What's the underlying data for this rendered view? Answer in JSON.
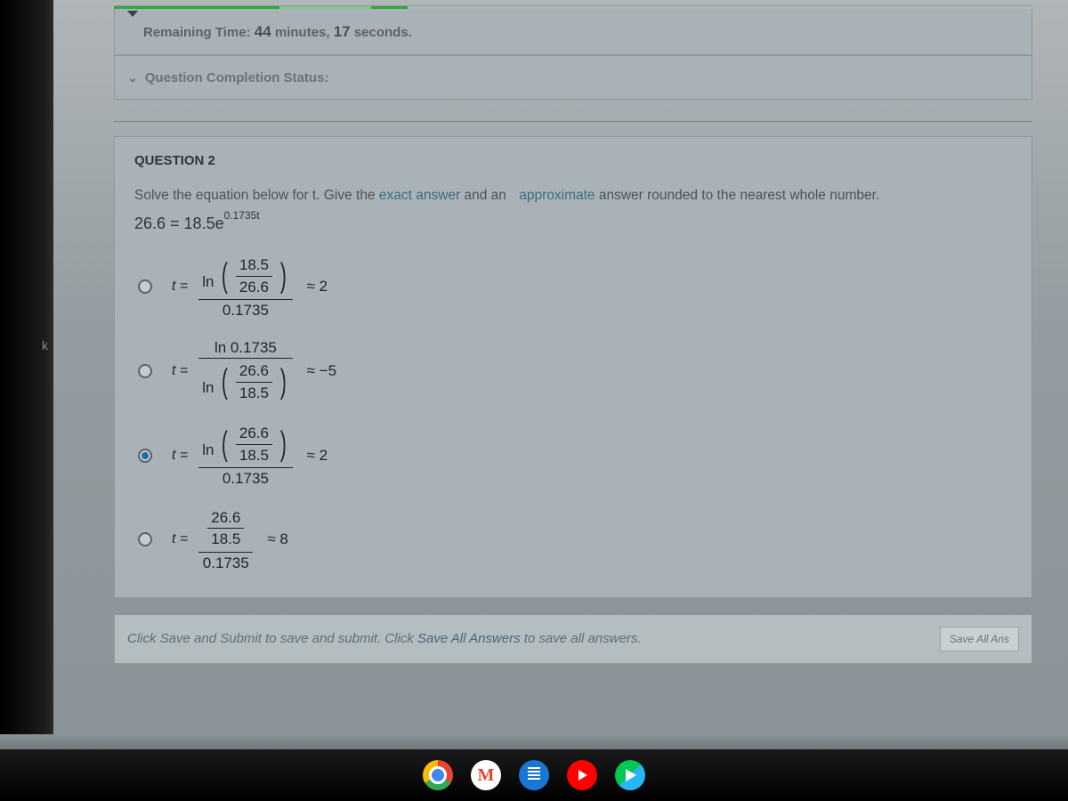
{
  "timer": {
    "prefix": "Remaining Time:",
    "minutes": "44",
    "minutes_label": "minutes,",
    "seconds": "17",
    "seconds_label": "seconds."
  },
  "status": {
    "caret": "⌄",
    "label": "Question Completion Status:"
  },
  "question": {
    "title": "QUESTION 2",
    "prompt_pre": "Solve the equation below for t.  Give the ",
    "prompt_exact": "exact answer",
    "prompt_mid": " and an ",
    "prompt_approx": "approximate",
    "prompt_post": " answer rounded to the nearest whole number.",
    "equation_lhs": "26.6 = 18.5e",
    "equation_exp": "0.1735t"
  },
  "options": [
    {
      "selected": false,
      "t_label": "t =",
      "ln": "ln",
      "inner_num": "18.5",
      "inner_den": "26.6",
      "outer_den": "0.1735",
      "approx": "≈ 2",
      "layout": "ln_over_k"
    },
    {
      "selected": false,
      "t_label": "t =",
      "ln": "ln",
      "num_plain": "ln 0.1735",
      "inner_num": "26.6",
      "inner_den": "18.5",
      "approx": "≈ −5",
      "layout": "k_over_ln"
    },
    {
      "selected": true,
      "t_label": "t =",
      "ln": "ln",
      "inner_num": "26.6",
      "inner_den": "18.5",
      "outer_den": "0.1735",
      "approx": "≈ 2",
      "layout": "ln_over_k"
    },
    {
      "selected": false,
      "t_label": "t =",
      "ln": "",
      "inner_num": "26.6",
      "inner_den": "18.5",
      "outer_den": "0.1735",
      "approx": "≈ 8",
      "layout": "plain_over_k"
    }
  ],
  "footer": {
    "text_pre": "Click Save and Submit to save and submit. Click ",
    "text_sa": "Save All Answers",
    "text_post": " to save all answers.",
    "button": "Save All Ans"
  },
  "taskbar": {
    "gmail_letter": "M"
  },
  "colors": {
    "panel_bg": "#a9b3b7",
    "panel_border": "#8f999d",
    "text_dark": "#2f3538",
    "text_mid": "#5a6266",
    "link_teal": "#3d6a83",
    "radio_selected": "#1a6fa8",
    "progress_green": "#2fa83b"
  }
}
